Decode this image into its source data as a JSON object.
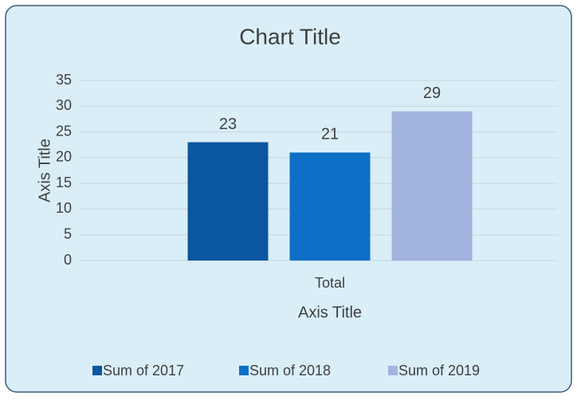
{
  "chart_data": {
    "type": "bar",
    "title": "Chart Title",
    "x_label": "Axis Title",
    "y_label": "Axis Title",
    "categories": [
      "Total"
    ],
    "series": [
      {
        "name": "Sum of 2017",
        "color": "#0a57a0",
        "values": [
          23
        ]
      },
      {
        "name": "Sum of 2018",
        "color": "#0e6fc6",
        "values": [
          21
        ]
      },
      {
        "name": "Sum of 2019",
        "color": "#a0b4de",
        "values": [
          29
        ]
      }
    ],
    "ylim": [
      0,
      35
    ],
    "yticks": [
      0,
      5,
      10,
      15,
      20,
      25,
      30,
      35
    ],
    "grid": true,
    "legend": "bottom"
  }
}
